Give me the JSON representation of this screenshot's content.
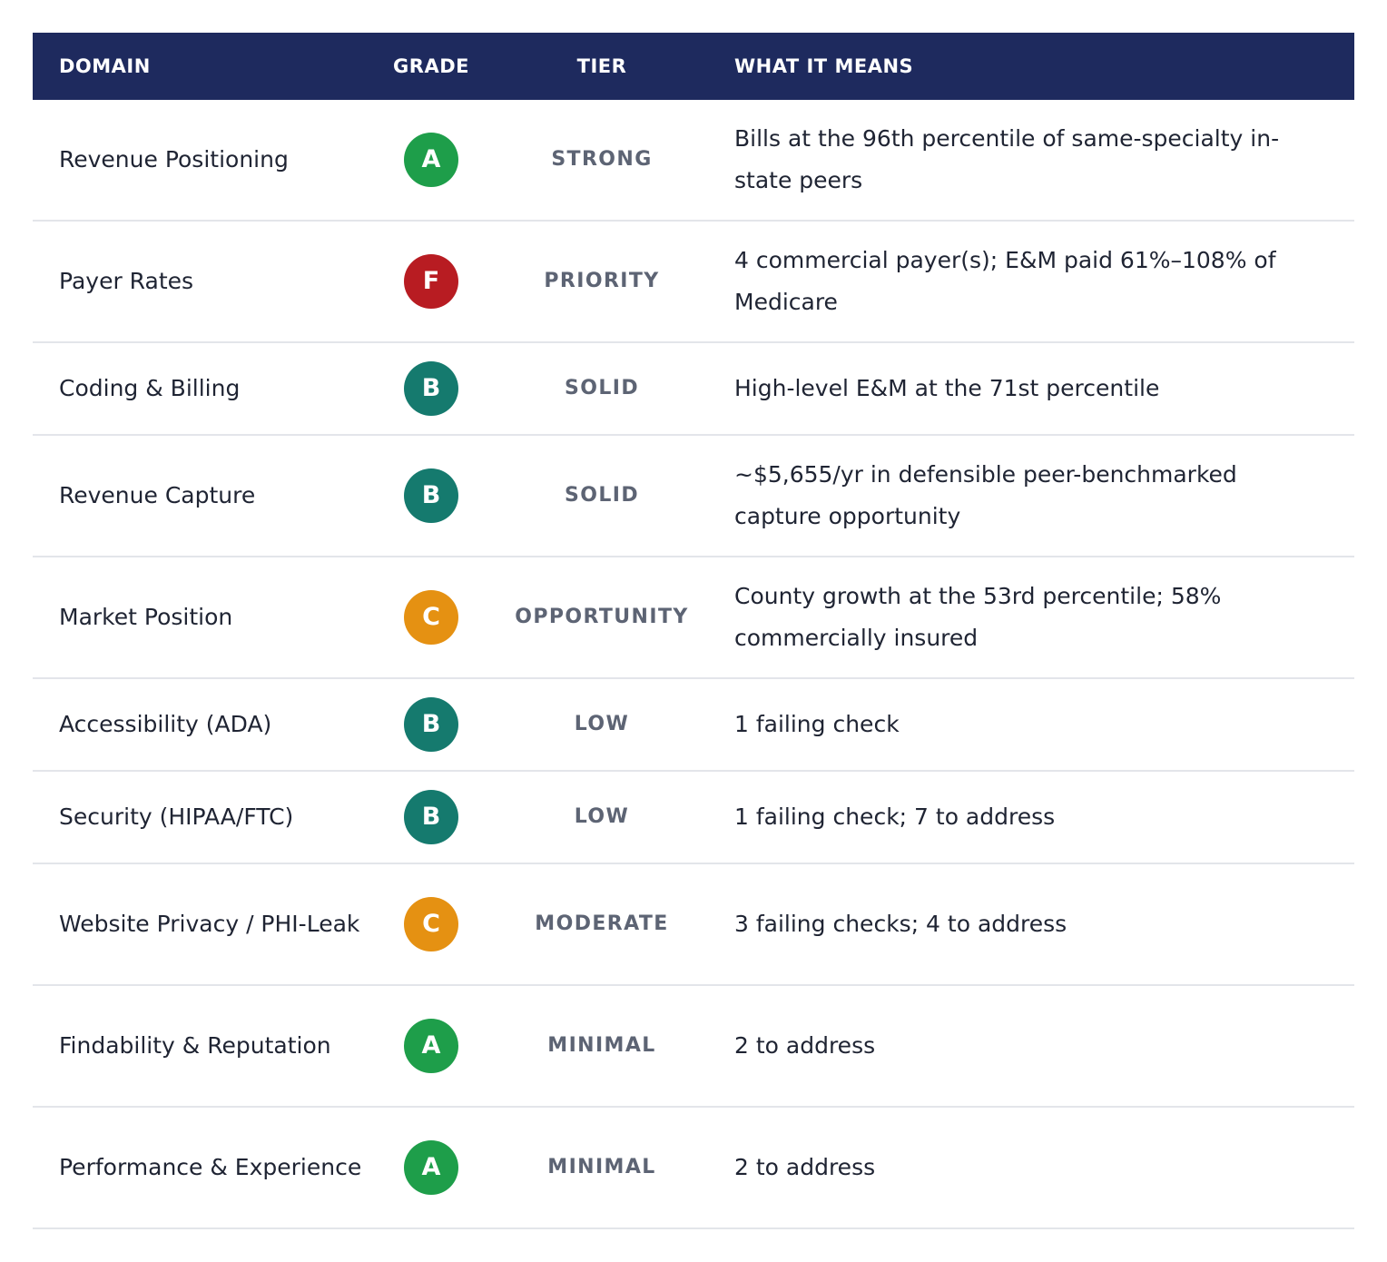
{
  "header": {
    "domain": "DOMAIN",
    "grade": "GRADE",
    "tier": "TIER",
    "means": "WHAT IT MEANS"
  },
  "grade_colors": {
    "A": "#1e9e4a",
    "B": "#157a6e",
    "C": "#e59112",
    "F": "#b81c22"
  },
  "rows": [
    {
      "domain": "Revenue Positioning",
      "grade": "A",
      "tier": "STRONG",
      "means": "Bills at the 96th percentile of same-specialty in-state peers"
    },
    {
      "domain": "Payer Rates",
      "grade": "F",
      "tier": "PRIORITY",
      "means": "4 commercial payer(s); E&M paid 61%–108% of Medicare"
    },
    {
      "domain": "Coding & Billing",
      "grade": "B",
      "tier": "SOLID",
      "means": "High-level E&M at the 71st percentile"
    },
    {
      "domain": "Revenue Capture",
      "grade": "B",
      "tier": "SOLID",
      "means": "~$5,655/yr in defensible peer-benchmarked capture opportunity"
    },
    {
      "domain": "Market Position",
      "grade": "C",
      "tier": "OPPORTUNITY",
      "means": "County growth at the 53rd percentile; 58% commercially insured"
    },
    {
      "domain": "Accessibility (ADA)",
      "grade": "B",
      "tier": "LOW",
      "means": "1 failing check"
    },
    {
      "domain": "Security (HIPAA/FTC)",
      "grade": "B",
      "tier": "LOW",
      "means": "1 failing check; 7 to address"
    },
    {
      "domain": "Website Privacy / PHI-Leak",
      "grade": "C",
      "tier": "MODERATE",
      "means": "3 failing checks; 4 to address"
    },
    {
      "domain": "Findability & Reputation",
      "grade": "A",
      "tier": "MINIMAL",
      "means": "2 to address"
    },
    {
      "domain": "Performance & Experience",
      "grade": "A",
      "tier": "MINIMAL",
      "means": "2 to address"
    }
  ]
}
